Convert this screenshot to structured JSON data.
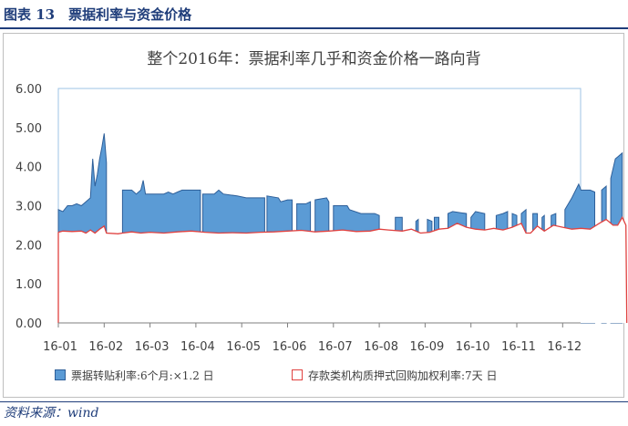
{
  "figure": {
    "label": "图表 13",
    "title": "票据利率与资金价格",
    "source": "资料来源：wind"
  },
  "chart_data": {
    "type": "area",
    "title": "整个2016年：票据利率几乎和资金价格一路向背",
    "ylim": [
      0,
      6
    ],
    "yticks": [
      "0.00",
      "1.00",
      "2.00",
      "3.00",
      "4.00",
      "5.00",
      "6.00"
    ],
    "xticks": [
      "16-01",
      "16-02",
      "16-03",
      "16-04",
      "16-05",
      "16-06",
      "16-07",
      "16-08",
      "16-09",
      "16-10",
      "16-11",
      "16-12"
    ],
    "x_month_start": [
      "2016-01",
      "2016-02",
      "2016-03",
      "2016-04",
      "2016-05",
      "2016-06",
      "2016-07",
      "2016-08",
      "2016-09",
      "2016-10",
      "2016-11",
      "2016-12"
    ],
    "legend_position": "bottom",
    "colors": {
      "bill": "#5b9bd5",
      "bill_edge": "#2e5f99",
      "repo": "#e0413f"
    },
    "series": [
      {
        "name": "票据转贴利率:6个月:×1.2 日",
        "kind": "area",
        "segments": [
          [
            [
              0.0,
              2.9
            ],
            [
              0.1,
              2.85
            ],
            [
              0.2,
              3.0
            ],
            [
              0.3,
              3.0
            ],
            [
              0.4,
              3.05
            ],
            [
              0.5,
              3.0
            ],
            [
              0.6,
              3.1
            ],
            [
              0.7,
              3.2
            ],
            [
              0.75,
              4.2
            ],
            [
              0.8,
              3.5
            ],
            [
              0.85,
              3.8
            ],
            [
              0.9,
              4.2
            ],
            [
              0.95,
              4.5
            ],
            [
              1.0,
              4.85
            ],
            [
              1.05,
              4.1
            ]
          ],
          [
            [
              1.4,
              3.4
            ],
            [
              1.6,
              3.4
            ],
            [
              1.7,
              3.3
            ],
            [
              1.8,
              3.4
            ],
            [
              1.85,
              3.65
            ],
            [
              1.9,
              3.3
            ],
            [
              2.2,
              3.3
            ],
            [
              2.3,
              3.3
            ],
            [
              2.4,
              3.35
            ],
            [
              2.5,
              3.3
            ],
            [
              2.6,
              3.35
            ],
            [
              2.7,
              3.4
            ],
            [
              3.0,
              3.4
            ],
            [
              3.1,
              3.4
            ]
          ],
          [
            [
              3.15,
              3.3
            ],
            [
              3.4,
              3.3
            ],
            [
              3.5,
              3.4
            ],
            [
              3.6,
              3.3
            ],
            [
              3.9,
              3.25
            ],
            [
              4.1,
              3.2
            ],
            [
              4.2,
              3.2
            ],
            [
              4.5,
              3.2
            ]
          ],
          [
            [
              4.55,
              3.25
            ],
            [
              4.8,
              3.2
            ],
            [
              4.85,
              3.1
            ],
            [
              5.0,
              3.15
            ],
            [
              5.1,
              3.15
            ]
          ],
          [
            [
              5.2,
              3.05
            ],
            [
              5.4,
              3.05
            ],
            [
              5.5,
              3.1
            ]
          ],
          [
            [
              5.6,
              3.15
            ],
            [
              5.85,
              3.2
            ],
            [
              5.9,
              3.1
            ]
          ],
          [
            [
              6.0,
              3.0
            ],
            [
              6.3,
              3.0
            ],
            [
              6.35,
              2.9
            ],
            [
              6.6,
              2.8
            ],
            [
              6.9,
              2.8
            ],
            [
              7.0,
              2.75
            ]
          ],
          [
            [
              7.35,
              2.7
            ],
            [
              7.5,
              2.7
            ]
          ],
          [
            [
              7.8,
              2.6
            ],
            [
              7.85,
              2.65
            ]
          ],
          [
            [
              8.05,
              2.65
            ],
            [
              8.15,
              2.6
            ]
          ],
          [
            [
              8.2,
              2.7
            ],
            [
              8.3,
              2.7
            ]
          ],
          [
            [
              8.5,
              2.8
            ],
            [
              8.6,
              2.85
            ],
            [
              8.9,
              2.8
            ]
          ],
          [
            [
              9.0,
              2.7
            ],
            [
              9.1,
              2.85
            ],
            [
              9.3,
              2.8
            ]
          ],
          [
            [
              9.55,
              2.75
            ],
            [
              9.7,
              2.8
            ],
            [
              9.8,
              2.85
            ]
          ],
          [
            [
              9.9,
              2.8
            ],
            [
              10.0,
              2.75
            ]
          ],
          [
            [
              10.1,
              2.8
            ],
            [
              10.2,
              2.9
            ]
          ],
          [
            [
              10.35,
              2.8
            ],
            [
              10.45,
              2.8
            ]
          ],
          [
            [
              10.55,
              2.7
            ],
            [
              10.6,
              2.75
            ]
          ],
          [
            [
              10.75,
              2.75
            ],
            [
              10.85,
              2.8
            ]
          ],
          [
            [
              11.05,
              2.9
            ],
            [
              11.2,
              3.2
            ],
            [
              11.35,
              3.55
            ],
            [
              11.4,
              3.4
            ],
            [
              11.6,
              3.4
            ],
            [
              11.7,
              3.35
            ]
          ],
          [
            [
              11.85,
              3.4
            ],
            [
              11.95,
              3.5
            ]
          ],
          [
            [
              12.05,
              3.7
            ],
            [
              12.15,
              4.2
            ],
            [
              12.2,
              4.25
            ],
            [
              12.3,
              4.35
            ]
          ]
        ]
      },
      {
        "name": "存款类机构质押式回购加权利率:7天 日",
        "kind": "line",
        "points": [
          [
            0.0,
            2.32
          ],
          [
            0.1,
            2.35
          ],
          [
            0.3,
            2.34
          ],
          [
            0.5,
            2.35
          ],
          [
            0.6,
            2.3
          ],
          [
            0.7,
            2.38
          ],
          [
            0.8,
            2.3
          ],
          [
            0.9,
            2.4
          ],
          [
            1.0,
            2.48
          ],
          [
            1.05,
            2.3
          ],
          [
            1.3,
            2.28
          ],
          [
            1.4,
            2.3
          ],
          [
            1.6,
            2.33
          ],
          [
            1.8,
            2.3
          ],
          [
            2.0,
            2.32
          ],
          [
            2.3,
            2.3
          ],
          [
            2.6,
            2.33
          ],
          [
            2.9,
            2.35
          ],
          [
            3.2,
            2.32
          ],
          [
            3.5,
            2.3
          ],
          [
            3.8,
            2.31
          ],
          [
            4.1,
            2.3
          ],
          [
            4.4,
            2.32
          ],
          [
            4.7,
            2.33
          ],
          [
            5.0,
            2.35
          ],
          [
            5.3,
            2.37
          ],
          [
            5.6,
            2.33
          ],
          [
            5.9,
            2.35
          ],
          [
            6.2,
            2.38
          ],
          [
            6.5,
            2.34
          ],
          [
            6.8,
            2.35
          ],
          [
            7.0,
            2.4
          ],
          [
            7.2,
            2.38
          ],
          [
            7.5,
            2.35
          ],
          [
            7.7,
            2.4
          ],
          [
            7.9,
            2.3
          ],
          [
            8.1,
            2.32
          ],
          [
            8.3,
            2.4
          ],
          [
            8.5,
            2.42
          ],
          [
            8.7,
            2.55
          ],
          [
            8.9,
            2.45
          ],
          [
            9.1,
            2.4
          ],
          [
            9.3,
            2.38
          ],
          [
            9.5,
            2.42
          ],
          [
            9.7,
            2.38
          ],
          [
            9.9,
            2.45
          ],
          [
            10.1,
            2.55
          ],
          [
            10.2,
            2.3
          ],
          [
            10.3,
            2.3
          ],
          [
            10.45,
            2.48
          ],
          [
            10.6,
            2.35
          ],
          [
            10.8,
            2.5
          ],
          [
            11.0,
            2.45
          ],
          [
            11.2,
            2.4
          ],
          [
            11.4,
            2.42
          ],
          [
            11.6,
            2.4
          ],
          [
            11.8,
            2.55
          ],
          [
            11.95,
            2.65
          ],
          [
            12.1,
            2.5
          ],
          [
            12.2,
            2.5
          ],
          [
            12.3,
            2.7
          ],
          [
            12.38,
            2.5
          ],
          [
            12.4,
            0.0
          ]
        ]
      }
    ]
  }
}
